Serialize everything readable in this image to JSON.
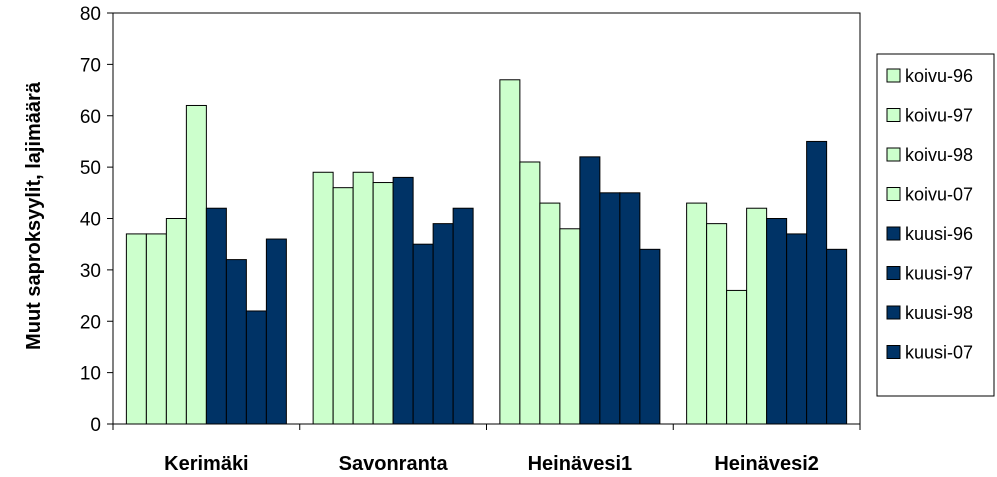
{
  "chart_data": {
    "type": "bar",
    "title": "",
    "xlabel": "",
    "ylabel": "Muut saproksyylit, lajimäärä",
    "ylim": [
      0,
      80
    ],
    "yticks": [
      0,
      10,
      20,
      30,
      40,
      50,
      60,
      70,
      80
    ],
    "categories": [
      "Kerimäki",
      "Savonranta",
      "Heinävesi1",
      "Heinävesi2"
    ],
    "series": [
      {
        "name": "koivu-96",
        "color": "#ccffcc",
        "values": [
          37,
          49,
          67,
          43
        ]
      },
      {
        "name": "koivu-97",
        "color": "#ccffcc",
        "values": [
          37,
          46,
          51,
          39
        ]
      },
      {
        "name": "koivu-98",
        "color": "#ccffcc",
        "values": [
          40,
          49,
          43,
          26
        ]
      },
      {
        "name": "koivu-07",
        "color": "#ccffcc",
        "values": [
          62,
          47,
          38,
          42
        ]
      },
      {
        "name": "kuusi-96",
        "color": "#003366",
        "values": [
          42,
          48,
          52,
          40
        ]
      },
      {
        "name": "kuusi-97",
        "color": "#003366",
        "values": [
          32,
          35,
          45,
          37
        ]
      },
      {
        "name": "kuusi-98",
        "color": "#003366",
        "values": [
          22,
          39,
          45,
          55
        ]
      },
      {
        "name": "kuusi-07",
        "color": "#003366",
        "values": [
          36,
          42,
          34,
          34
        ]
      }
    ],
    "grid": false,
    "legend_position": "right"
  }
}
